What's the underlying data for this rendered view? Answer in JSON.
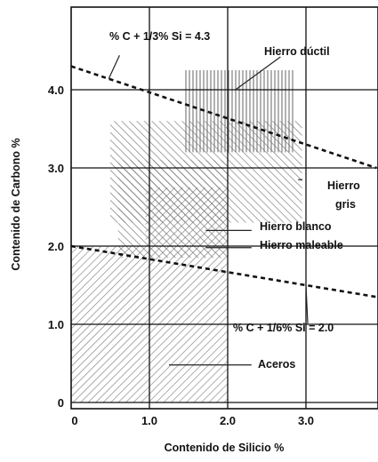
{
  "chart_data": {
    "type": "area",
    "xlabel": "Contenido de Silicio %",
    "ylabel": "Contenido de Carbono %",
    "xlim": [
      0,
      3.9
    ],
    "ylim": [
      -0.1,
      5.0
    ],
    "x_ticks": [
      0,
      1.0,
      2.0,
      3.0
    ],
    "x_tick_labels": [
      "0",
      "1.0",
      "2.0",
      "3.0"
    ],
    "y_ticks": [
      0,
      1.0,
      2.0,
      3.0,
      4.0
    ],
    "y_tick_labels": [
      "0",
      "1.0",
      "2.0",
      "3.0",
      "4.0"
    ],
    "grid": true,
    "lines": [
      {
        "name": "% C + 1/3% Si = 4.3",
        "style": "dashed",
        "points": [
          [
            0,
            4.3
          ],
          [
            3.9,
            3.0
          ]
        ],
        "label_anchor": [
          1.05,
          4.6
        ]
      },
      {
        "name": "% C + 1/6% Si = 2.0",
        "style": "dashed",
        "points": [
          [
            0,
            2.0
          ],
          [
            3.9,
            1.35
          ]
        ],
        "label_anchor": [
          2.0,
          0.92
        ]
      }
    ],
    "regions": [
      {
        "name": "Aceros",
        "x_range": [
          0,
          2.0
        ],
        "y_range": [
          0,
          2.0
        ],
        "hatch": "diag-right",
        "pointer_to": [
          1.25,
          0.48
        ],
        "label_anchor": [
          2.35,
          0.48
        ]
      },
      {
        "name": "Hierro gris",
        "x_range": [
          0.5,
          2.95
        ],
        "y_range": [
          2.3,
          3.6
        ],
        "hatch": "diag-left",
        "pointer_to": [
          2.9,
          2.85
        ],
        "label_anchor": [
          3.0,
          2.85
        ]
      },
      {
        "name": "Hierro blanco",
        "x_range": [
          0.6,
          2.0
        ],
        "y_range": [
          1.85,
          3.1
        ],
        "hatch": "diag-left",
        "pointer_to": [
          1.72,
          2.2
        ],
        "label_anchor": [
          2.35,
          2.2
        ]
      },
      {
        "name": "Hierro maleable",
        "x_range": [
          0.95,
          2.0
        ],
        "y_range": [
          2.0,
          2.75
        ],
        "hatch": "diag-right",
        "pointer_to": [
          1.72,
          1.98
        ],
        "label_anchor": [
          2.35,
          1.98
        ]
      },
      {
        "name": "Hierro dúctil",
        "x_range": [
          1.45,
          2.85
        ],
        "y_range": [
          3.2,
          4.25
        ],
        "hatch": "vertical",
        "pointer_to": [
          2.1,
          4.0
        ],
        "label_anchor": [
          2.72,
          4.42
        ]
      }
    ],
    "labels": {
      "line_upper": "% C + 1/3% Si = 4.3",
      "line_lower": "% C + 1/6% Si = 2.0",
      "ductile": "Hierro dúctil",
      "gray_1": "Hierro",
      "gray_2": "gris",
      "white": "Hierro blanco",
      "malleable": "Hierro maleable",
      "steels": "Aceros"
    }
  }
}
